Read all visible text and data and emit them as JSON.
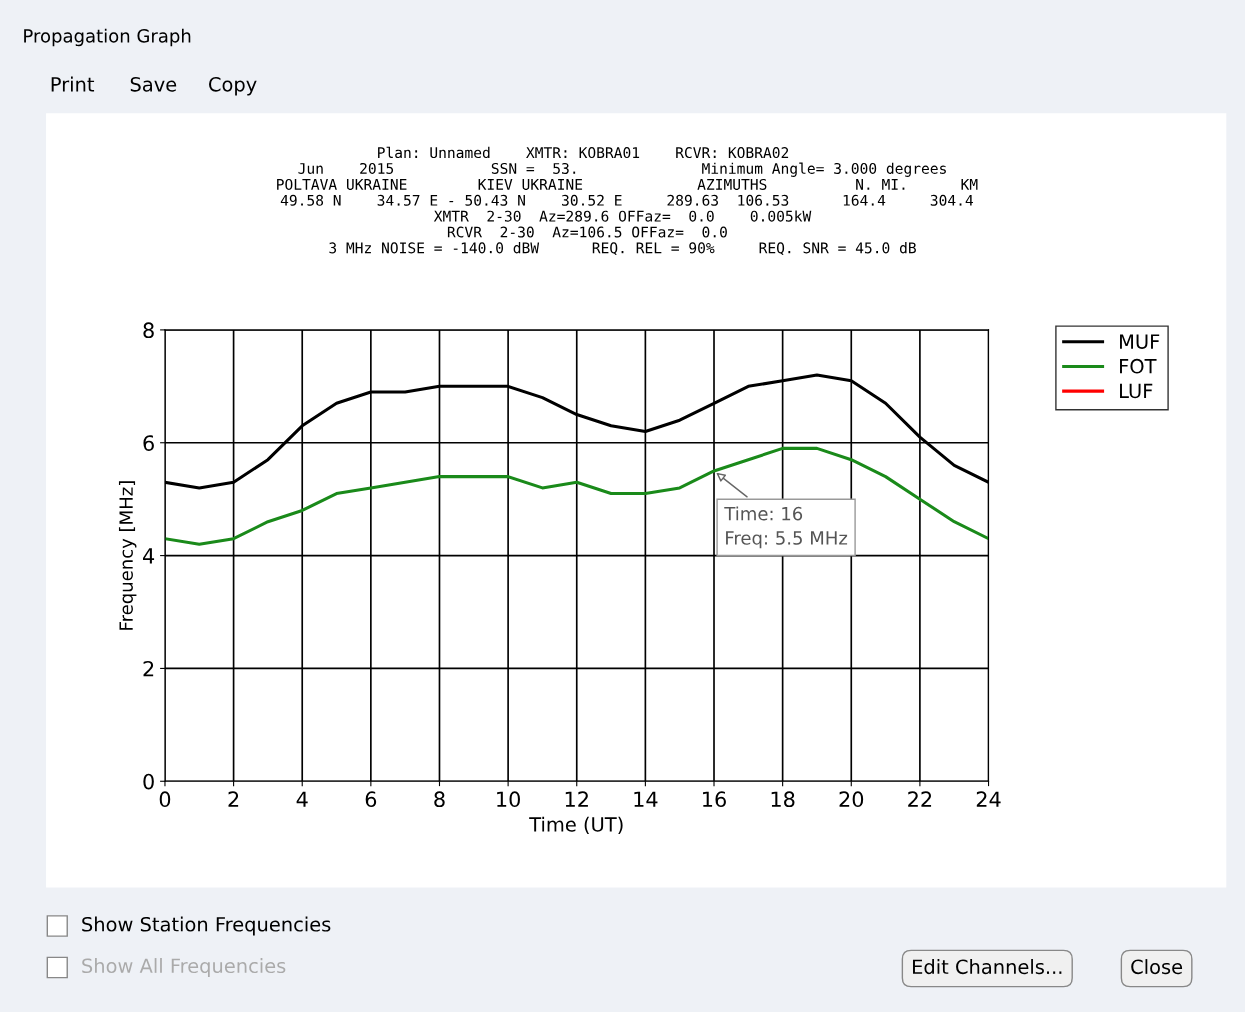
{
  "chart_data": {
    "type": "line",
    "title": "Propagation Graph",
    "subtitle": "Plan: Unnamed    XMTR: KOBRA01    RCVR: KOBRA02         \nJun    2015           SSN =  53.              Minimum Angle= 3.000 degrees\n POLTAVA UKRAINE        KIEV UKRAINE             AZIMUTHS          N. MI.      KM\n 49.58 N    34.57 E - 50.43 N    30.52 E     289.63  106.53      164.4     304.4\nXMTR  2-30  Az=289.6 OFFaz=  0.0    0.005kW\nRCVR  2-30  Az=106.5 OFFaz=  0.0        \n3 MHz NOISE = -140.0 dBW      REQ. REL = 90%     REQ. SNR = 45.0 dB",
    "xlabel": "Time (UT)",
    "ylabel": "Frequency [MHz]",
    "x": [
      0,
      1,
      2,
      3,
      4,
      5,
      6,
      7,
      8,
      9,
      10,
      11,
      12,
      13,
      14,
      15,
      16,
      17,
      18,
      19,
      20,
      21,
      22,
      23,
      24
    ],
    "series": [
      {
        "name": "MUF",
        "color": "#000000",
        "values": [
          5.3,
          5.2,
          5.3,
          5.7,
          6.3,
          6.7,
          6.9,
          6.9,
          7.0,
          7.0,
          7.0,
          6.8,
          6.5,
          6.3,
          6.2,
          6.4,
          6.7,
          7.0,
          7.1,
          7.2,
          7.1,
          6.7,
          6.1,
          5.6,
          5.3
        ]
      },
      {
        "name": "FOT",
        "color": "#1a8a1a",
        "values": [
          4.3,
          4.2,
          4.3,
          4.6,
          4.8,
          5.1,
          5.2,
          5.3,
          5.4,
          5.4,
          5.4,
          5.2,
          5.3,
          5.1,
          5.1,
          5.2,
          5.5,
          5.7,
          5.9,
          5.9,
          5.7,
          5.4,
          5.0,
          4.6,
          4.3
        ]
      },
      {
        "name": "LUF",
        "color": "#ff0000",
        "values": [
          null,
          null,
          null,
          null,
          null,
          null,
          null,
          null,
          null,
          null,
          null,
          null,
          null,
          null,
          null,
          null,
          null,
          null,
          null,
          null,
          null,
          null,
          null,
          null,
          null
        ]
      }
    ],
    "xlim": [
      0,
      24
    ],
    "xticks": [
      0,
      2,
      4,
      6,
      8,
      10,
      12,
      14,
      16,
      18,
      20,
      22,
      24
    ],
    "ylim": [
      0,
      8
    ],
    "yticks": [
      0,
      2,
      4,
      6,
      8
    ],
    "grid": true,
    "legend": "right",
    "line_style": "solid",
    "marker": "none",
    "annotations": [
      {
        "text": "Time: 16\nFreq: 5.5 MHz",
        "x": 16,
        "y": 5.5
      },
      "Print",
      "Save",
      "Copy",
      "Show Station Frequencies",
      "Show All Frequencies",
      "Edit Channels...",
      "Close"
    ]
  }
}
